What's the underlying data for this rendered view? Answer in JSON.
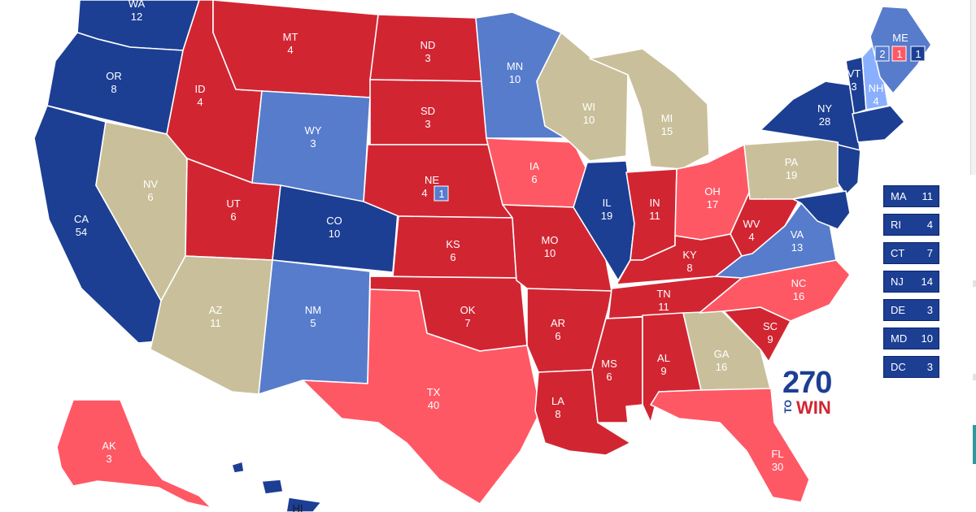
{
  "colors": {
    "safe_dem": "#1c3f94",
    "likely_dem": "#577ccc",
    "leans_dem": "#8aafff",
    "safe_rep": "#d22532",
    "leans_rep": "#ff5865",
    "tossup": "#c9c09b",
    "outline": "#ffffff"
  },
  "states": [
    {
      "abbr": "WA",
      "ev": "12",
      "rating": "safe_dem"
    },
    {
      "abbr": "OR",
      "ev": "8",
      "rating": "safe_dem"
    },
    {
      "abbr": "CA",
      "ev": "54",
      "rating": "safe_dem"
    },
    {
      "abbr": "NV",
      "ev": "6",
      "rating": "tossup"
    },
    {
      "abbr": "ID",
      "ev": "4",
      "rating": "safe_rep"
    },
    {
      "abbr": "MT",
      "ev": "4",
      "rating": "safe_rep"
    },
    {
      "abbr": "WY",
      "ev": "3",
      "rating": "likely_dem"
    },
    {
      "abbr": "UT",
      "ev": "6",
      "rating": "safe_rep"
    },
    {
      "abbr": "AZ",
      "ev": "11",
      "rating": "tossup"
    },
    {
      "abbr": "CO",
      "ev": "10",
      "rating": "safe_dem"
    },
    {
      "abbr": "NM",
      "ev": "5",
      "rating": "likely_dem"
    },
    {
      "abbr": "ND",
      "ev": "3",
      "rating": "safe_rep"
    },
    {
      "abbr": "SD",
      "ev": "3",
      "rating": "safe_rep"
    },
    {
      "abbr": "NE",
      "ev": "4",
      "rating": "safe_rep"
    },
    {
      "abbr": "KS",
      "ev": "6",
      "rating": "safe_rep"
    },
    {
      "abbr": "OK",
      "ev": "7",
      "rating": "safe_rep"
    },
    {
      "abbr": "TX",
      "ev": "40",
      "rating": "leans_rep"
    },
    {
      "abbr": "MN",
      "ev": "10",
      "rating": "likely_dem"
    },
    {
      "abbr": "IA",
      "ev": "6",
      "rating": "leans_rep"
    },
    {
      "abbr": "MO",
      "ev": "10",
      "rating": "safe_rep"
    },
    {
      "abbr": "AR",
      "ev": "6",
      "rating": "safe_rep"
    },
    {
      "abbr": "LA",
      "ev": "8",
      "rating": "safe_rep"
    },
    {
      "abbr": "WI",
      "ev": "10",
      "rating": "tossup"
    },
    {
      "abbr": "IL",
      "ev": "19",
      "rating": "safe_dem"
    },
    {
      "abbr": "MI",
      "ev": "15",
      "rating": "tossup"
    },
    {
      "abbr": "IN",
      "ev": "11",
      "rating": "safe_rep"
    },
    {
      "abbr": "OH",
      "ev": "17",
      "rating": "leans_rep"
    },
    {
      "abbr": "KY",
      "ev": "8",
      "rating": "safe_rep"
    },
    {
      "abbr": "TN",
      "ev": "11",
      "rating": "safe_rep"
    },
    {
      "abbr": "MS",
      "ev": "6",
      "rating": "safe_rep"
    },
    {
      "abbr": "AL",
      "ev": "9",
      "rating": "safe_rep"
    },
    {
      "abbr": "GA",
      "ev": "16",
      "rating": "tossup"
    },
    {
      "abbr": "FL",
      "ev": "30",
      "rating": "leans_rep"
    },
    {
      "abbr": "SC",
      "ev": "9",
      "rating": "safe_rep"
    },
    {
      "abbr": "NC",
      "ev": "16",
      "rating": "leans_rep"
    },
    {
      "abbr": "VA",
      "ev": "13",
      "rating": "likely_dem"
    },
    {
      "abbr": "WV",
      "ev": "4",
      "rating": "safe_rep"
    },
    {
      "abbr": "PA",
      "ev": "19",
      "rating": "tossup"
    },
    {
      "abbr": "NY",
      "ev": "28",
      "rating": "safe_dem"
    },
    {
      "abbr": "VT",
      "ev": "3",
      "rating": "safe_dem"
    },
    {
      "abbr": "NH",
      "ev": "4",
      "rating": "leans_dem"
    },
    {
      "abbr": "ME",
      "ev": "",
      "rating": "likely_dem"
    },
    {
      "abbr": "AK",
      "ev": "3",
      "rating": "leans_rep"
    },
    {
      "abbr": "HI",
      "ev": "",
      "rating": "safe_dem"
    }
  ],
  "districts": [
    {
      "label": "1",
      "rating": "likely_dem"
    },
    {
      "label": "2",
      "rating": "likely_dem"
    },
    {
      "label": "1",
      "rating": "leans_rep"
    },
    {
      "label": "1",
      "rating": "safe_dem"
    }
  ],
  "small_states": [
    {
      "abbr": "MA",
      "ev": "11"
    },
    {
      "abbr": "RI",
      "ev": "4"
    },
    {
      "abbr": "CT",
      "ev": "7"
    },
    {
      "abbr": "NJ",
      "ev": "14"
    },
    {
      "abbr": "DE",
      "ev": "3"
    },
    {
      "abbr": "MD",
      "ev": "10"
    },
    {
      "abbr": "DC",
      "ev": "3"
    }
  ],
  "logo": {
    "number": "270",
    "to": "TO",
    "win": "WIN"
  }
}
